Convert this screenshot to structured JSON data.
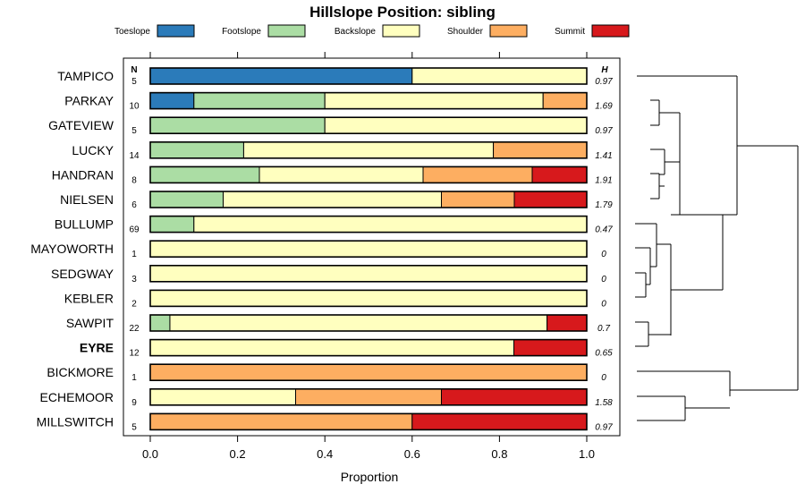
{
  "chart_data": {
    "type": "bar",
    "stacked": true,
    "orientation": "horizontal",
    "title": "Hillslope Position: sibling",
    "xlabel": "Proportion",
    "xlim": [
      0,
      1
    ],
    "xticks": [
      "0.0",
      "0.2",
      "0.4",
      "0.6",
      "0.8",
      "1.0"
    ],
    "n_header": "N",
    "h_header": "H",
    "legend_position": "top",
    "legend": [
      {
        "name": "Toeslope",
        "color": "#2b7bba"
      },
      {
        "name": "Footslope",
        "color": "#abdda4"
      },
      {
        "name": "Backslope",
        "color": "#ffffbf"
      },
      {
        "name": "Shoulder",
        "color": "#fdae61"
      },
      {
        "name": "Summit",
        "color": "#d7191c"
      }
    ],
    "rows": [
      {
        "label": "TAMPICO",
        "n": "5",
        "h": "0.97",
        "bold": false,
        "values": [
          0.6,
          0,
          0.4,
          0,
          0
        ]
      },
      {
        "label": "PARKAY",
        "n": "10",
        "h": "1.69",
        "bold": false,
        "values": [
          0.1,
          0.3,
          0.5,
          0.1,
          0
        ]
      },
      {
        "label": "GATEVIEW",
        "n": "5",
        "h": "0.97",
        "bold": false,
        "values": [
          0,
          0.4,
          0.6,
          0,
          0
        ]
      },
      {
        "label": "LUCKY",
        "n": "14",
        "h": "1.41",
        "bold": false,
        "values": [
          0,
          0.214,
          0.572,
          0.214,
          0
        ]
      },
      {
        "label": "HANDRAN",
        "n": "8",
        "h": "1.91",
        "bold": false,
        "values": [
          0,
          0.25,
          0.375,
          0.25,
          0.125
        ]
      },
      {
        "label": "NIELSEN",
        "n": "6",
        "h": "1.79",
        "bold": false,
        "values": [
          0,
          0.167,
          0.5,
          0.167,
          0.166
        ]
      },
      {
        "label": "BULLUMP",
        "n": "69",
        "h": "0.47",
        "bold": false,
        "values": [
          0,
          0.1,
          0.9,
          0,
          0
        ]
      },
      {
        "label": "MAYOWORTH",
        "n": "1",
        "h": "0",
        "bold": false,
        "values": [
          0,
          0,
          1,
          0,
          0
        ]
      },
      {
        "label": "SEDGWAY",
        "n": "3",
        "h": "0",
        "bold": false,
        "values": [
          0,
          0,
          1,
          0,
          0
        ]
      },
      {
        "label": "KEBLER",
        "n": "2",
        "h": "0",
        "bold": false,
        "values": [
          0,
          0,
          1,
          0,
          0
        ]
      },
      {
        "label": "SAWPIT",
        "n": "22",
        "h": "0.7",
        "bold": false,
        "values": [
          0,
          0.045,
          0.864,
          0,
          0.091
        ]
      },
      {
        "label": "EYRE",
        "n": "12",
        "h": "0.65",
        "bold": true,
        "values": [
          0,
          0,
          0.833,
          0,
          0.167
        ]
      },
      {
        "label": "BICKMORE",
        "n": "1",
        "h": "0",
        "bold": false,
        "values": [
          0,
          0,
          0,
          1,
          0
        ]
      },
      {
        "label": "ECHEMOOR",
        "n": "9",
        "h": "1.58",
        "bold": false,
        "values": [
          0,
          0,
          0.333,
          0.334,
          0.333
        ]
      },
      {
        "label": "MILLSWITCH",
        "n": "5",
        "h": "0.97",
        "bold": false,
        "values": [
          0,
          0,
          0,
          0.6,
          0.4
        ]
      }
    ]
  }
}
